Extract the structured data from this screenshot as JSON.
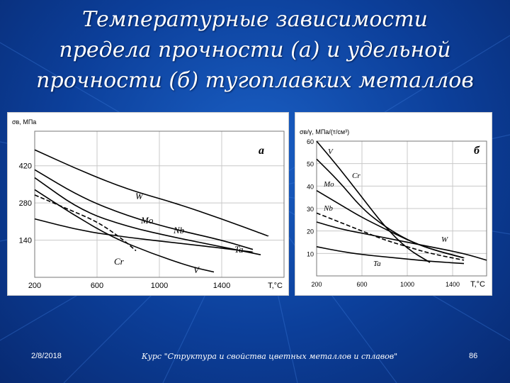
{
  "slide": {
    "title_lines": [
      "Температурные зависимости",
      "предела прочности (а) и удельной",
      "прочности (б) тугоплавких металлов"
    ],
    "footer": {
      "date": "2/8/2018",
      "course": "Курс \"Структура и свойства цветных металлов и сплавов\"",
      "page": "86"
    }
  },
  "chart_data": [
    {
      "type": "line",
      "panel_label": "а",
      "ylabel": "σв, МПа",
      "xlabel": "T,°C",
      "x_ticks": [
        "200",
        "600",
        "1000",
        "1400"
      ],
      "y_ticks": [
        "140",
        "280",
        "420"
      ],
      "xlim": [
        200,
        1800
      ],
      "ylim": [
        0,
        550
      ],
      "grid": true,
      "series": [
        {
          "name": "W",
          "dashed": false,
          "x": [
            200,
            500,
            800,
            1100,
            1400,
            1700
          ],
          "y": [
            480,
            400,
            330,
            280,
            220,
            155
          ]
        },
        {
          "name": "Mo",
          "dashed": false,
          "x": [
            200,
            500,
            800,
            1100,
            1400,
            1600
          ],
          "y": [
            405,
            300,
            230,
            180,
            140,
            105
          ]
        },
        {
          "name": "Nb",
          "dashed": false,
          "x": [
            200,
            500,
            800,
            1100,
            1400,
            1650
          ],
          "y": [
            375,
            250,
            190,
            150,
            115,
            85
          ]
        },
        {
          "name": "Ta",
          "dashed": false,
          "x": [
            200,
            500,
            800,
            1100,
            1400,
            1600
          ],
          "y": [
            220,
            175,
            150,
            130,
            110,
            95
          ]
        },
        {
          "name": "V",
          "dashed": false,
          "x": [
            200,
            450,
            700,
            950,
            1200,
            1350
          ],
          "y": [
            330,
            235,
            150,
            90,
            40,
            20
          ]
        },
        {
          "name": "Cr",
          "dashed": true,
          "x": [
            200,
            400,
            600,
            750,
            850
          ],
          "y": [
            310,
            260,
            210,
            150,
            100
          ]
        }
      ]
    },
    {
      "type": "line",
      "panel_label": "б",
      "ylabel": "σв/γ, МПа/(т/см³)",
      "xlabel": "T,°C",
      "x_ticks": [
        "200",
        "600",
        "1000",
        "1400"
      ],
      "y_ticks": [
        "10",
        "20",
        "30",
        "40",
        "50",
        "60"
      ],
      "xlim": [
        200,
        1700
      ],
      "ylim": [
        0,
        60
      ],
      "grid": true,
      "series": [
        {
          "name": "V",
          "dashed": false,
          "x": [
            200,
            400,
            600,
            800,
            1000,
            1200
          ],
          "y": [
            60,
            48,
            35,
            22,
            12,
            6
          ]
        },
        {
          "name": "Cr",
          "dashed": false,
          "x": [
            200,
            400,
            600,
            800,
            1000,
            1200,
            1500
          ],
          "y": [
            52,
            42,
            30,
            22,
            16,
            12,
            8
          ]
        },
        {
          "name": "Mo",
          "dashed": false,
          "x": [
            200,
            400,
            600,
            800,
            1000,
            1200,
            1500
          ],
          "y": [
            38,
            32,
            26,
            21,
            16,
            12,
            8
          ]
        },
        {
          "name": "Nb",
          "dashed": true,
          "x": [
            200,
            400,
            600,
            800,
            1000,
            1200,
            1500
          ],
          "y": [
            28,
            24,
            20,
            16,
            13,
            10,
            7
          ]
        },
        {
          "name": "W",
          "dashed": false,
          "x": [
            200,
            400,
            600,
            800,
            1000,
            1200,
            1500,
            1700
          ],
          "y": [
            24,
            21,
            19,
            17,
            15,
            13,
            10,
            7
          ]
        },
        {
          "name": "Ta",
          "dashed": false,
          "x": [
            200,
            400,
            600,
            800,
            1000,
            1200,
            1500
          ],
          "y": [
            13,
            11,
            9.5,
            8.5,
            7.5,
            6.5,
            5.5
          ]
        }
      ]
    }
  ]
}
